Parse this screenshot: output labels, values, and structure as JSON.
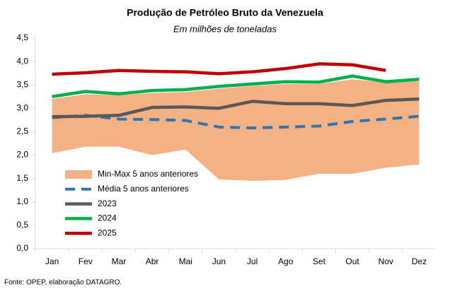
{
  "chart_data": {
    "type": "line",
    "title": "Produção de Petróleo Bruto da Venezuela",
    "subtitle": "Em milhões de toneladas",
    "source": "Fonte: OPEP, elaboração DATAGRO.",
    "categories": [
      "Jan",
      "Fev",
      "Mar",
      "Abr",
      "Mai",
      "Jun",
      "Jul",
      "Ago",
      "Set",
      "Out",
      "Nov",
      "Dez"
    ],
    "ylim": [
      0,
      4.5
    ],
    "yticks": [
      {
        "value": 0,
        "label": "0,0"
      },
      {
        "value": 0.5,
        "label": "0,5"
      },
      {
        "value": 1,
        "label": "1,0"
      },
      {
        "value": 1.5,
        "label": "1,5"
      },
      {
        "value": 2,
        "label": "2,0"
      },
      {
        "value": 2.5,
        "label": "2,5"
      },
      {
        "value": 3,
        "label": "3,0"
      },
      {
        "value": 3.5,
        "label": "3,5"
      },
      {
        "value": 4,
        "label": "4,0"
      },
      {
        "value": 4.5,
        "label": "4,5"
      }
    ],
    "grid": false,
    "legend": "lower left",
    "series": [
      {
        "name": "Min-Max 5 anos anteriores",
        "kind": "band",
        "color": "#f4b183",
        "low": [
          2.04,
          2.18,
          2.18,
          2.0,
          2.12,
          1.48,
          1.45,
          1.47,
          1.6,
          1.6,
          1.73,
          1.8
        ],
        "high": [
          3.2,
          3.3,
          3.28,
          3.33,
          3.35,
          3.42,
          3.48,
          3.52,
          3.52,
          3.62,
          3.55,
          3.58
        ]
      },
      {
        "name": "Média 5 anos anteriores",
        "kind": "line",
        "dash": true,
        "color": "#2e75b6",
        "values": [
          2.8,
          2.85,
          2.77,
          2.76,
          2.74,
          2.6,
          2.58,
          2.6,
          2.62,
          2.72,
          2.77,
          2.83
        ]
      },
      {
        "name": "2023",
        "kind": "line",
        "dash": false,
        "color": "#595959",
        "values": [
          2.82,
          2.83,
          2.85,
          3.02,
          3.03,
          3.0,
          3.15,
          3.1,
          3.1,
          3.06,
          3.17,
          3.2
        ]
      },
      {
        "name": "2024",
        "kind": "line",
        "dash": false,
        "color": "#00b050",
        "values": [
          3.25,
          3.36,
          3.31,
          3.38,
          3.4,
          3.47,
          3.52,
          3.57,
          3.56,
          3.69,
          3.57,
          3.62
        ]
      },
      {
        "name": "2025",
        "kind": "line",
        "dash": false,
        "color": "#c00000",
        "values": [
          3.73,
          3.76,
          3.81,
          3.79,
          3.78,
          3.74,
          3.78,
          3.85,
          3.95,
          3.93,
          3.81,
          null
        ]
      }
    ]
  }
}
